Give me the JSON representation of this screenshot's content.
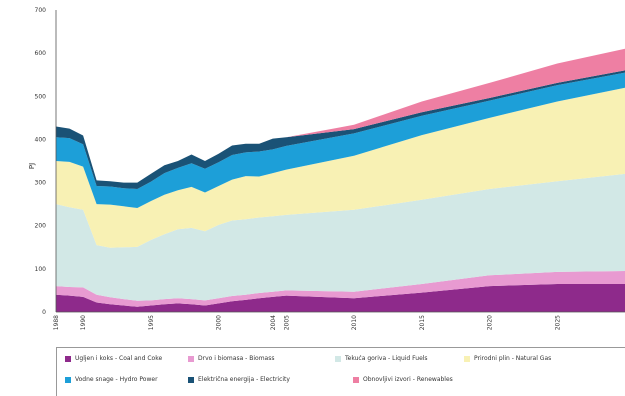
{
  "chart_data": {
    "type": "area",
    "stacked": true,
    "ylabel": "PJ",
    "ylim": [
      0,
      700
    ],
    "yticks": [
      0,
      100,
      200,
      300,
      400,
      500,
      600,
      700
    ],
    "x": [
      1988,
      1989,
      1990,
      1991,
      1992,
      1993,
      1994,
      1995,
      1996,
      1997,
      1998,
      1999,
      2000,
      2001,
      2002,
      2003,
      2004,
      2005,
      2010,
      2015,
      2020,
      2025,
      2030
    ],
    "xtick_labels": [
      {
        "x": 1988,
        "label": "1988"
      },
      {
        "x": 1990,
        "label": "1990"
      },
      {
        "x": 1995,
        "label": "1995"
      },
      {
        "x": 2000,
        "label": "2000"
      },
      {
        "x": 2004,
        "label": "2004"
      },
      {
        "x": 2005,
        "label": "2005"
      },
      {
        "x": 2010,
        "label": "2010"
      },
      {
        "x": 2015,
        "label": "2015"
      },
      {
        "x": 2020,
        "label": "2020"
      },
      {
        "x": 2025,
        "label": "2025"
      }
    ],
    "series": [
      {
        "name": "Ugljen i koks - Coal and Coke",
        "color": "#8e2a8b",
        "values": [
          40,
          38,
          35,
          22,
          18,
          15,
          12,
          15,
          18,
          20,
          18,
          15,
          20,
          25,
          28,
          32,
          35,
          38,
          32,
          45,
          60,
          65,
          65
        ]
      },
      {
        "name": "Drvo i biomasa - Biomass",
        "color": "#e89ad1",
        "values": [
          20,
          20,
          22,
          18,
          16,
          15,
          14,
          12,
          12,
          12,
          12,
          12,
          12,
          12,
          12,
          12,
          12,
          12,
          15,
          20,
          25,
          28,
          30
        ]
      },
      {
        "name": "Tekuća goriva - Liquid Fuels",
        "color": "#d2e8e6",
        "values": [
          190,
          185,
          180,
          115,
          115,
          120,
          125,
          140,
          150,
          160,
          165,
          160,
          170,
          175,
          175,
          175,
          175,
          175,
          190,
          195,
          200,
          210,
          225
        ]
      },
      {
        "name": "Prirodni plin - Natural Gas",
        "color": "#f8f1b4",
        "values": [
          100,
          105,
          100,
          95,
          100,
          95,
          90,
          90,
          92,
          90,
          95,
          90,
          90,
          95,
          100,
          95,
          100,
          105,
          125,
          150,
          165,
          185,
          200
        ]
      },
      {
        "name": "Vodne snage - Hydro Power",
        "color": "#1d9fd8",
        "values": [
          55,
          55,
          52,
          42,
          42,
          42,
          44,
          45,
          50,
          52,
          55,
          55,
          55,
          57,
          55,
          58,
          55,
          55,
          52,
          45,
          40,
          38,
          35
        ]
      },
      {
        "name": "Električna energija - Electricity",
        "color": "#1a5276",
        "values": [
          25,
          22,
          20,
          13,
          12,
          13,
          15,
          18,
          18,
          16,
          20,
          18,
          20,
          22,
          20,
          18,
          25,
          20,
          10,
          8,
          6,
          5,
          5
        ]
      },
      {
        "name": "Obnovljivi izvori - Renewables",
        "color": "#ee7fa3",
        "values": [
          0,
          0,
          0,
          0,
          0,
          0,
          0,
          0,
          0,
          0,
          0,
          0,
          0,
          0,
          0,
          0,
          0,
          0,
          10,
          25,
          35,
          45,
          50
        ]
      }
    ],
    "legend_position": "bottom",
    "grid": false
  },
  "legend_rows": [
    [
      "Ugljen i koks - Coal and Coke",
      "Drvo i biomasa - Biomass",
      "Tekuća goriva - Liquid Fuels",
      "Prirodni plin - Natural Gas"
    ],
    [
      "Vodne snage - Hydro Power",
      "Električna energija - Electricity",
      "Obnovljivi izvori - Renewables"
    ]
  ]
}
